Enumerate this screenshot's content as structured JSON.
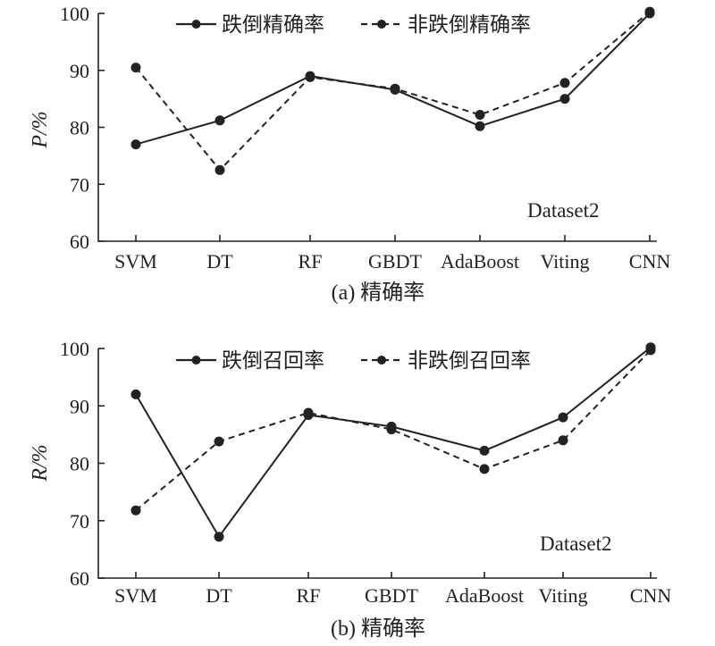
{
  "chart_data": [
    {
      "type": "line",
      "ylabel": "P/%",
      "caption": "(a) 精确率",
      "annotation": "Dataset2",
      "categories": [
        "SVM",
        "DT",
        "RF",
        "GBDT",
        "AdaBoost",
        "Viting",
        "CNN"
      ],
      "ylim": [
        60,
        100
      ],
      "yticks": [
        60,
        70,
        80,
        90,
        100
      ],
      "grid": false,
      "legend_position": "top",
      "series": [
        {
          "name": "跌倒精确率",
          "style": "solid",
          "values": [
            77.0,
            81.2,
            89.0,
            86.6,
            80.2,
            85.0,
            100.0
          ]
        },
        {
          "name": "非跌倒精确率",
          "style": "dashed",
          "values": [
            90.5,
            72.5,
            88.8,
            86.8,
            82.2,
            87.8,
            100.3
          ]
        }
      ]
    },
    {
      "type": "line",
      "ylabel": "R/%",
      "caption": "(b) 精确率",
      "annotation": "Dataset2",
      "categories": [
        "SVM",
        "DT",
        "RF",
        "GBDT",
        "AdaBoost",
        "Viting",
        "CNN"
      ],
      "ylim": [
        60,
        100
      ],
      "yticks": [
        60,
        70,
        80,
        90,
        100
      ],
      "grid": false,
      "legend_position": "top",
      "series": [
        {
          "name": "跌倒召回率",
          "style": "solid",
          "values": [
            92.0,
            67.2,
            88.4,
            86.4,
            82.2,
            88.0,
            100.2
          ]
        },
        {
          "name": "非跌倒召回率",
          "style": "dashed",
          "values": [
            71.8,
            83.8,
            88.8,
            85.9,
            79.0,
            84.0,
            99.7
          ]
        }
      ]
    }
  ],
  "style": {
    "line_color": "#222222",
    "background": "#ffffff"
  }
}
